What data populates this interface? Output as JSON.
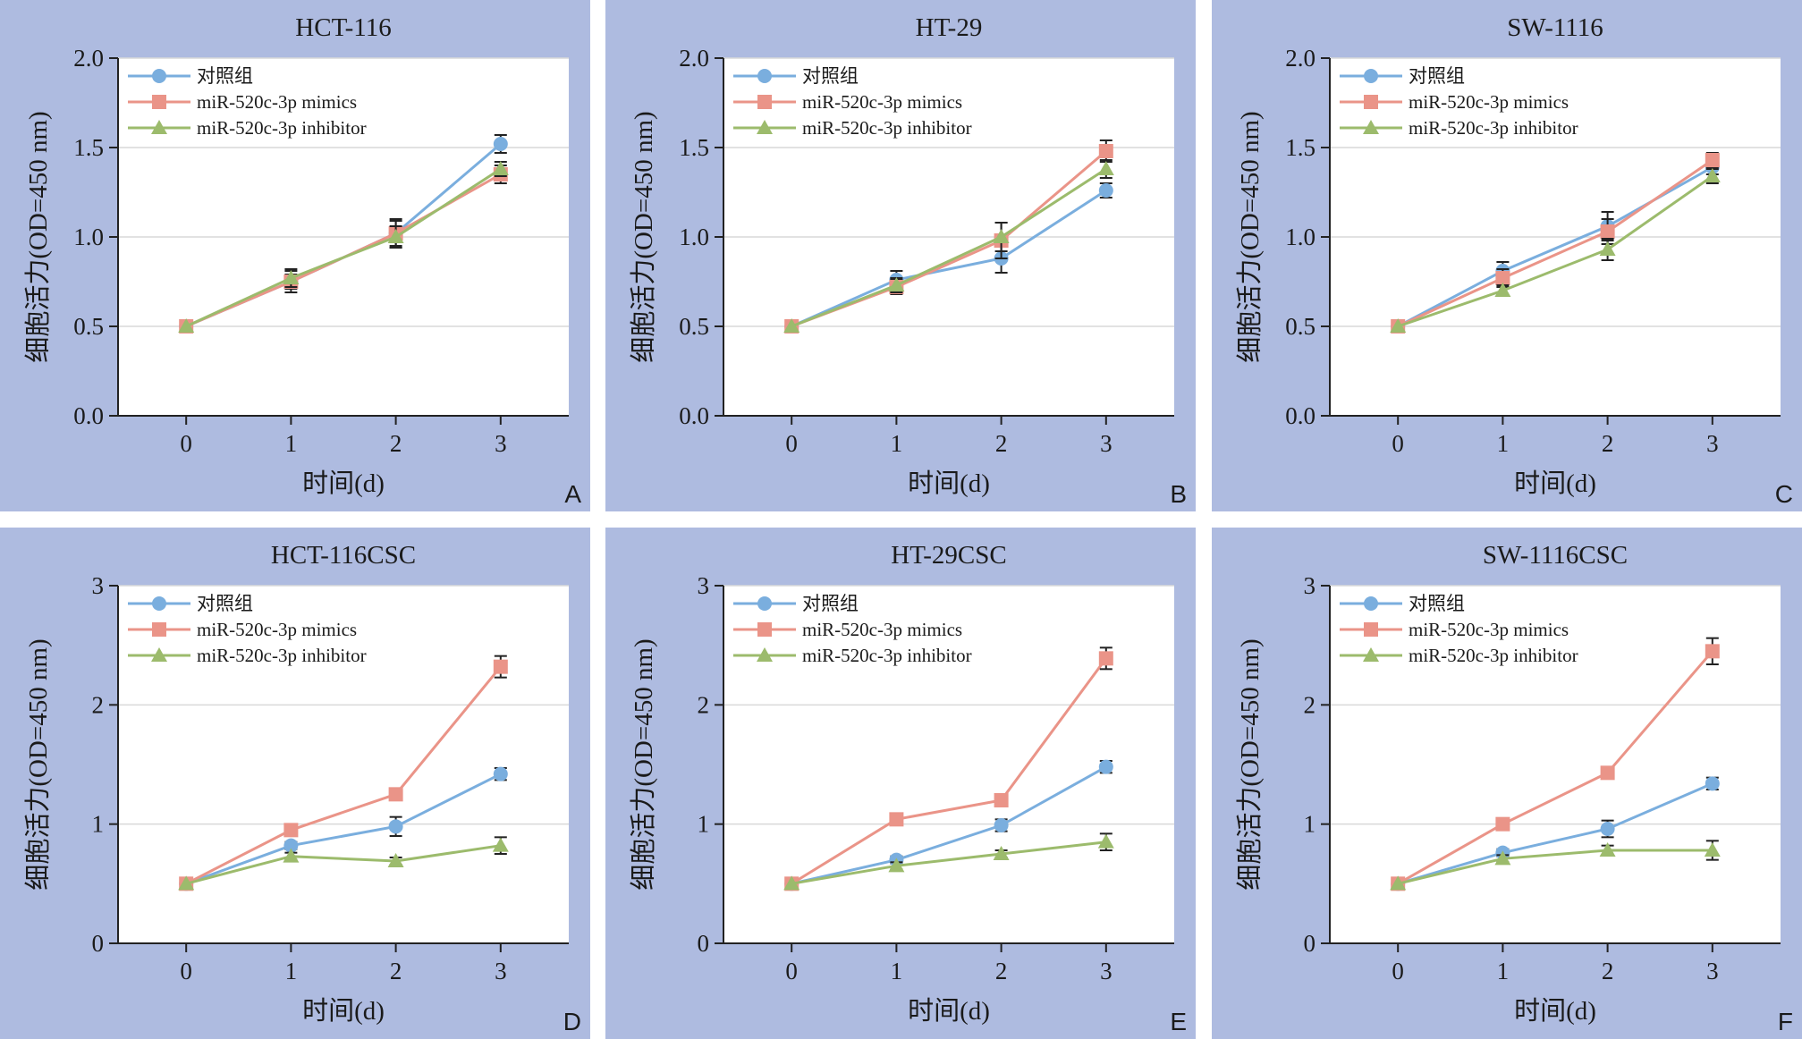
{
  "colors": {
    "control": "#7aaede",
    "mimics": "#ea9488",
    "inhibitor": "#9cbb6c",
    "panel_bg": "#aebbe0",
    "grid": "#d9d9d9"
  },
  "chart_data": [
    {
      "type": "line",
      "letter": "A",
      "title": "HCT-116",
      "xlabel": "时间(d)",
      "ylabel": "细胞活力(OD=450 nm)",
      "x": [
        0,
        1,
        2,
        3
      ],
      "ylim": [
        0,
        2.0
      ],
      "yticks": [
        "0.0",
        "0.5",
        "1.0",
        "1.5",
        "2.0"
      ],
      "ytick_values": [
        0,
        0.5,
        1.0,
        1.5,
        2.0
      ],
      "grid": true,
      "legend": "top-left",
      "series": [
        {
          "name": "对照组",
          "marker": "circle",
          "values": [
            0.5,
            0.75,
            1.02,
            1.52
          ],
          "errors": [
            0,
            0.04,
            0.08,
            0.05
          ]
        },
        {
          "name": "miR-520c-3p mimics",
          "marker": "square",
          "values": [
            0.5,
            0.75,
            1.02,
            1.35
          ],
          "errors": [
            0,
            0.06,
            0.07,
            0.05
          ]
        },
        {
          "name": "miR-520c-3p inhibitor",
          "marker": "triangle",
          "values": [
            0.5,
            0.77,
            1.0,
            1.38
          ],
          "errors": [
            0,
            0.05,
            0.06,
            0.04
          ]
        }
      ]
    },
    {
      "type": "line",
      "letter": "B",
      "title": "HT-29",
      "xlabel": "时间(d)",
      "ylabel": "细胞活力(OD=450 nm)",
      "x": [
        0,
        1,
        2,
        3
      ],
      "ylim": [
        0,
        2.0
      ],
      "yticks": [
        "0.0",
        "0.5",
        "1.0",
        "1.5",
        "2.0"
      ],
      "ytick_values": [
        0,
        0.5,
        1.0,
        1.5,
        2.0
      ],
      "grid": true,
      "legend": "top-left",
      "series": [
        {
          "name": "对照组",
          "marker": "circle",
          "values": [
            0.5,
            0.76,
            0.88,
            1.26
          ],
          "errors": [
            0,
            0.05,
            0.08,
            0.04
          ]
        },
        {
          "name": "miR-520c-3p mimics",
          "marker": "square",
          "values": [
            0.5,
            0.72,
            0.98,
            1.48
          ],
          "errors": [
            0,
            0.04,
            0.1,
            0.06
          ]
        },
        {
          "name": "miR-520c-3p inhibitor",
          "marker": "triangle",
          "values": [
            0.5,
            0.73,
            1.0,
            1.38
          ],
          "errors": [
            0,
            0.04,
            0.08,
            0.05
          ]
        }
      ]
    },
    {
      "type": "line",
      "letter": "C",
      "title": "SW-1116",
      "xlabel": "时间(d)",
      "ylabel": "细胞活力(OD=450 nm)",
      "x": [
        0,
        1,
        2,
        3
      ],
      "ylim": [
        0,
        2.0
      ],
      "yticks": [
        "0.0",
        "0.5",
        "1.0",
        "1.5",
        "2.0"
      ],
      "ytick_values": [
        0,
        0.5,
        1.0,
        1.5,
        2.0
      ],
      "grid": true,
      "legend": "top-left",
      "series": [
        {
          "name": "对照组",
          "marker": "circle",
          "values": [
            0.5,
            0.81,
            1.06,
            1.39
          ],
          "errors": [
            0,
            0.05,
            0.08,
            0.04
          ]
        },
        {
          "name": "miR-520c-3p mimics",
          "marker": "square",
          "values": [
            0.5,
            0.77,
            1.03,
            1.43
          ],
          "errors": [
            0,
            0.05,
            0.07,
            0.04
          ]
        },
        {
          "name": "miR-520c-3p inhibitor",
          "marker": "triangle",
          "values": [
            0.5,
            0.7,
            0.93,
            1.34
          ],
          "errors": [
            0,
            0.03,
            0.06,
            0.04
          ]
        }
      ]
    },
    {
      "type": "line",
      "letter": "D",
      "title": "HCT-116CSC",
      "xlabel": "时间(d)",
      "ylabel": "细胞活力(OD=450 nm)",
      "x": [
        0,
        1,
        2,
        3
      ],
      "ylim": [
        0,
        3
      ],
      "yticks": [
        "0",
        "1",
        "2",
        "3"
      ],
      "ytick_values": [
        0,
        1,
        2,
        3
      ],
      "grid": true,
      "legend": "top-left",
      "series": [
        {
          "name": "对照组",
          "marker": "circle",
          "values": [
            0.5,
            0.82,
            0.98,
            1.42
          ],
          "errors": [
            0,
            0.03,
            0.08,
            0.05
          ]
        },
        {
          "name": "miR-520c-3p mimics",
          "marker": "square",
          "values": [
            0.5,
            0.95,
            1.25,
            2.32
          ],
          "errors": [
            0,
            0.03,
            0.03,
            0.09
          ]
        },
        {
          "name": "miR-520c-3p inhibitor",
          "marker": "triangle",
          "values": [
            0.5,
            0.73,
            0.69,
            0.82
          ],
          "errors": [
            0,
            0.03,
            0.03,
            0.07
          ]
        }
      ]
    },
    {
      "type": "line",
      "letter": "E",
      "title": "HT-29CSC",
      "xlabel": "时间(d)",
      "ylabel": "细胞活力(OD=450 nm)",
      "x": [
        0,
        1,
        2,
        3
      ],
      "ylim": [
        0,
        3
      ],
      "yticks": [
        "0",
        "1",
        "2",
        "3"
      ],
      "ytick_values": [
        0,
        1,
        2,
        3
      ],
      "grid": true,
      "legend": "top-left",
      "series": [
        {
          "name": "对照组",
          "marker": "circle",
          "values": [
            0.5,
            0.7,
            0.99,
            1.48
          ],
          "errors": [
            0,
            0.03,
            0.05,
            0.05
          ]
        },
        {
          "name": "miR-520c-3p mimics",
          "marker": "square",
          "values": [
            0.5,
            1.04,
            1.2,
            2.39
          ],
          "errors": [
            0,
            0.03,
            0.03,
            0.09
          ]
        },
        {
          "name": "miR-520c-3p inhibitor",
          "marker": "triangle",
          "values": [
            0.5,
            0.65,
            0.75,
            0.85
          ],
          "errors": [
            0,
            0.03,
            0.03,
            0.07
          ]
        }
      ]
    },
    {
      "type": "line",
      "letter": "F",
      "title": "SW-1116CSC",
      "xlabel": "时间(d)",
      "ylabel": "细胞活力(OD=450 nm)",
      "x": [
        0,
        1,
        2,
        3
      ],
      "ylim": [
        0,
        3
      ],
      "yticks": [
        "0",
        "1",
        "2",
        "3"
      ],
      "ytick_values": [
        0,
        1,
        2,
        3
      ],
      "grid": true,
      "legend": "top-left",
      "series": [
        {
          "name": "对照组",
          "marker": "circle",
          "values": [
            0.5,
            0.76,
            0.96,
            1.34
          ],
          "errors": [
            0,
            0.03,
            0.07,
            0.05
          ]
        },
        {
          "name": "miR-520c-3p mimics",
          "marker": "square",
          "values": [
            0.5,
            1.0,
            1.43,
            2.45
          ],
          "errors": [
            0,
            0.03,
            0.03,
            0.11
          ]
        },
        {
          "name": "miR-520c-3p inhibitor",
          "marker": "triangle",
          "values": [
            0.5,
            0.71,
            0.78,
            0.78
          ],
          "errors": [
            0,
            0.03,
            0.04,
            0.08
          ]
        }
      ]
    }
  ]
}
